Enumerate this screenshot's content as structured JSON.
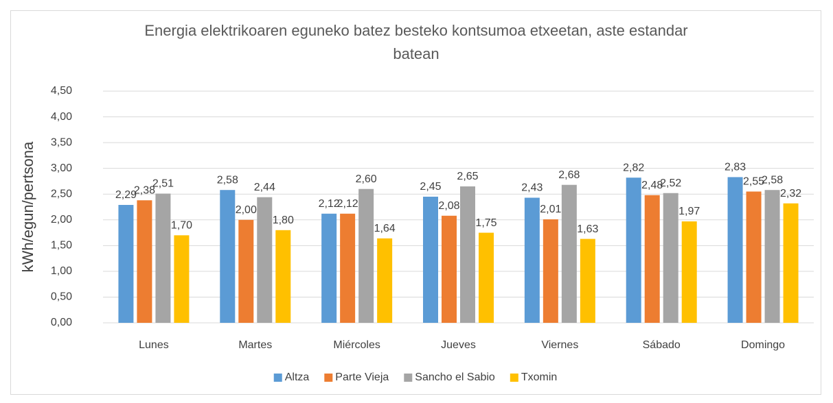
{
  "chart_data": {
    "type": "bar",
    "title": "Energia elektrikoaren eguneko batez besteko kontsumoa etxeetan, aste estandar batean",
    "ylabel": "kWh/egun/pertsona",
    "categories": [
      "Lunes",
      "Martes",
      "Miércoles",
      "Jueves",
      "Viernes",
      "Sábado",
      "Domingo"
    ],
    "series": [
      {
        "name": "Altza",
        "color": "#5b9bd5",
        "values": [
          2.29,
          2.58,
          2.12,
          2.45,
          2.43,
          2.82,
          2.83
        ],
        "value_labels": [
          "2,29",
          "2,58",
          "2,12",
          "2,45",
          "2,43",
          "2,82",
          "2,83"
        ]
      },
      {
        "name": "Parte Vieja",
        "color": "#ed7d31",
        "values": [
          2.38,
          2.0,
          2.12,
          2.08,
          2.01,
          2.48,
          2.55
        ],
        "value_labels": [
          "2,38",
          "2,00",
          "2,12",
          "2,08",
          "2,01",
          "2,48",
          "2,55"
        ]
      },
      {
        "name": "Sancho el Sabio",
        "color": "#a5a5a5",
        "values": [
          2.51,
          2.44,
          2.6,
          2.65,
          2.68,
          2.52,
          2.58
        ],
        "value_labels": [
          "2,51",
          "2,44",
          "2,60",
          "2,65",
          "2,68",
          "2,52",
          "2,58"
        ]
      },
      {
        "name": "Txomin",
        "color": "#ffc000",
        "values": [
          1.7,
          1.8,
          1.64,
          1.75,
          1.63,
          1.97,
          2.32
        ],
        "value_labels": [
          "1,70",
          "1,80",
          "1,64",
          "1,75",
          "1,63",
          "1,97",
          "2,32"
        ]
      }
    ],
    "ylim": [
      0,
      4.5
    ],
    "yticks": [
      {
        "value": 0,
        "label": "0,00"
      },
      {
        "value": 0.5,
        "label": "0,50"
      },
      {
        "value": 1,
        "label": "1,00"
      },
      {
        "value": 1.5,
        "label": "1,50"
      },
      {
        "value": 2,
        "label": "2,00"
      },
      {
        "value": 2.5,
        "label": "2,50"
      },
      {
        "value": 3,
        "label": "3,00"
      },
      {
        "value": 3.5,
        "label": "3,50"
      },
      {
        "value": 4,
        "label": "4,00"
      },
      {
        "value": 4.5,
        "label": "4,50"
      }
    ],
    "grid": true,
    "legend": "bottom"
  }
}
